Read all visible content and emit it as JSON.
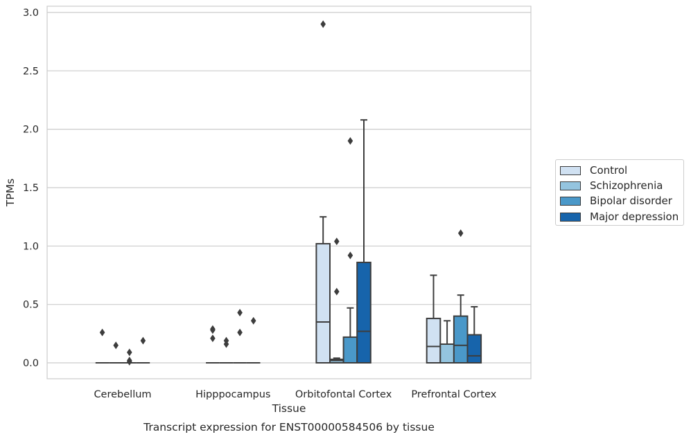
{
  "chart_data": {
    "type": "box",
    "title": "",
    "caption": "Transcript expression for ENST00000584506 by tissue",
    "xlabel": "Tissue",
    "ylabel": "TPMs",
    "ylim": [
      -0.14,
      3.05
    ],
    "yticks": [
      "0.0",
      "0.5",
      "1.0",
      "1.5",
      "2.0",
      "2.5",
      "3.0"
    ],
    "grid": true,
    "legend_position": "right, outside",
    "categories": [
      "Cerebellum",
      "Hipppocampus",
      "Orbitofontal Cortex",
      "Prefrontal Cortex"
    ],
    "series": [
      {
        "name": "Control",
        "color": "#d0e1f2",
        "boxes": [
          {
            "q1": 0.0,
            "median": 0.0,
            "q3": 0.0,
            "whisker_low": 0.0,
            "whisker_high": 0.0,
            "outliers": [
              0.26
            ]
          },
          {
            "q1": 0.0,
            "median": 0.0,
            "q3": 0.0,
            "whisker_low": 0.0,
            "whisker_high": 0.0,
            "outliers": [
              0.21,
              0.28,
              0.29
            ]
          },
          {
            "q1": 0.0,
            "median": 0.35,
            "q3": 1.02,
            "whisker_low": 0.0,
            "whisker_high": 1.25,
            "outliers": [
              2.9
            ]
          },
          {
            "q1": 0.0,
            "median": 0.14,
            "q3": 0.38,
            "whisker_low": 0.0,
            "whisker_high": 0.75,
            "outliers": []
          }
        ]
      },
      {
        "name": "Schizophrenia",
        "color": "#94c4df",
        "boxes": [
          {
            "q1": 0.0,
            "median": 0.0,
            "q3": 0.0,
            "whisker_low": 0.0,
            "whisker_high": 0.0,
            "outliers": [
              0.15
            ]
          },
          {
            "q1": 0.0,
            "median": 0.0,
            "q3": 0.0,
            "whisker_low": 0.0,
            "whisker_high": 0.0,
            "outliers": [
              0.16,
              0.19
            ]
          },
          {
            "q1": 0.0,
            "median": 0.02,
            "q3": 0.03,
            "whisker_low": 0.0,
            "whisker_high": 0.04,
            "outliers": [
              0.61,
              1.04
            ]
          },
          {
            "q1": 0.0,
            "median": 0.16,
            "q3": 0.16,
            "whisker_low": 0.0,
            "whisker_high": 0.36,
            "outliers": []
          }
        ]
      },
      {
        "name": "Bipolar disorder",
        "color": "#4a98c9",
        "boxes": [
          {
            "q1": 0.0,
            "median": 0.0,
            "q3": 0.0,
            "whisker_low": 0.0,
            "whisker_high": 0.0,
            "outliers": [
              0.01,
              0.02,
              0.09
            ]
          },
          {
            "q1": 0.0,
            "median": 0.0,
            "q3": 0.0,
            "whisker_low": 0.0,
            "whisker_high": 0.0,
            "outliers": [
              0.26,
              0.43
            ]
          },
          {
            "q1": 0.0,
            "median": 0.0,
            "q3": 0.22,
            "whisker_low": 0.0,
            "whisker_high": 0.47,
            "outliers": [
              0.92,
              1.9
            ]
          },
          {
            "q1": 0.0,
            "median": 0.15,
            "q3": 0.4,
            "whisker_low": 0.0,
            "whisker_high": 0.58,
            "outliers": [
              1.11
            ]
          }
        ]
      },
      {
        "name": "Major depression",
        "color": "#1764ab",
        "boxes": [
          {
            "q1": 0.0,
            "median": 0.0,
            "q3": 0.0,
            "whisker_low": 0.0,
            "whisker_high": 0.0,
            "outliers": [
              0.19
            ]
          },
          {
            "q1": 0.0,
            "median": 0.0,
            "q3": 0.0,
            "whisker_low": 0.0,
            "whisker_high": 0.0,
            "outliers": [
              0.36
            ]
          },
          {
            "q1": 0.0,
            "median": 0.27,
            "q3": 0.86,
            "whisker_low": 0.0,
            "whisker_high": 2.08,
            "outliers": []
          },
          {
            "q1": 0.0,
            "median": 0.06,
            "q3": 0.24,
            "whisker_low": 0.0,
            "whisker_high": 0.48,
            "outliers": []
          }
        ]
      }
    ]
  }
}
